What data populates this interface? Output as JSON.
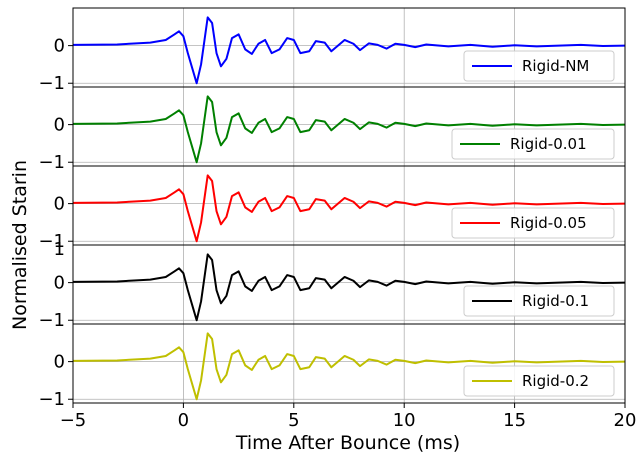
{
  "chart_data": {
    "type": "line",
    "xlabel": "Time After Bounce (ms)",
    "ylabel": "Normalised Starin",
    "xlim": [
      -5,
      20
    ],
    "xticks": [
      "−5",
      "0",
      "5",
      "10",
      "15",
      "20"
    ],
    "xtick_values": [
      -5,
      0,
      5,
      10,
      15,
      20
    ],
    "ylim": [
      -1,
      1
    ],
    "yticks": [
      "−1",
      "0"
    ],
    "ytick_values": [
      -1,
      0
    ],
    "top_ytick_label": "1",
    "grid": true,
    "legend_placement": "bottom-right (each panel)",
    "panels": [
      {
        "name": "Rigid-NM",
        "color": "#0000ff",
        "x": [
          -5,
          -3,
          -1.5,
          -0.8,
          -0.4,
          -0.2,
          0,
          0.2,
          0.45,
          0.6,
          0.8,
          1.1,
          1.3,
          1.5,
          1.7,
          1.95,
          2.2,
          2.5,
          2.8,
          3.1,
          3.4,
          3.7,
          4.0,
          4.35,
          4.7,
          5.0,
          5.3,
          5.7,
          6.0,
          6.4,
          6.7,
          7.0,
          7.3,
          7.7,
          8.0,
          8.4,
          8.8,
          9.2,
          9.6,
          10,
          10.5,
          11,
          12,
          13,
          14,
          15,
          16,
          17,
          18,
          19,
          20
        ],
        "y": [
          0.02,
          0.03,
          0.08,
          0.15,
          0.3,
          0.38,
          0.25,
          -0.2,
          -0.7,
          -1.0,
          -0.5,
          0.75,
          0.6,
          -0.2,
          -0.55,
          -0.35,
          0.2,
          0.3,
          -0.1,
          -0.22,
          0.05,
          0.15,
          -0.2,
          -0.1,
          0.2,
          0.15,
          -0.2,
          -0.15,
          0.12,
          0.08,
          -0.15,
          0.0,
          0.15,
          0.05,
          -0.12,
          0.06,
          0.02,
          -0.08,
          0.05,
          0.02,
          -0.04,
          0.03,
          -0.02,
          0.02,
          -0.03,
          0.01,
          -0.02,
          0.0,
          0.02,
          -0.01,
          0.0
        ]
      },
      {
        "name": "Rigid-0.01",
        "color": "#008000",
        "x": [
          -5,
          -3,
          -1.5,
          -0.8,
          -0.4,
          -0.2,
          0,
          0.2,
          0.45,
          0.6,
          0.8,
          1.1,
          1.3,
          1.5,
          1.7,
          1.95,
          2.2,
          2.5,
          2.8,
          3.1,
          3.4,
          3.7,
          4.0,
          4.35,
          4.7,
          5.0,
          5.3,
          5.7,
          6.0,
          6.4,
          6.7,
          7.0,
          7.3,
          7.7,
          8.0,
          8.4,
          8.8,
          9.2,
          9.6,
          10,
          10.5,
          11,
          12,
          13,
          14,
          15,
          16,
          17,
          18,
          19,
          20
        ],
        "y": [
          0.02,
          0.03,
          0.08,
          0.15,
          0.3,
          0.38,
          0.25,
          -0.2,
          -0.7,
          -1.0,
          -0.5,
          0.75,
          0.6,
          -0.2,
          -0.55,
          -0.35,
          0.2,
          0.3,
          -0.1,
          -0.22,
          0.05,
          0.15,
          -0.2,
          -0.1,
          0.2,
          0.15,
          -0.2,
          -0.15,
          0.12,
          0.08,
          -0.15,
          0.0,
          0.15,
          0.05,
          -0.12,
          0.06,
          0.02,
          -0.08,
          0.05,
          0.02,
          -0.04,
          0.03,
          -0.02,
          0.02,
          -0.03,
          0.01,
          -0.02,
          0.0,
          0.02,
          -0.01,
          0.0
        ]
      },
      {
        "name": "Rigid-0.05",
        "color": "#ff0000",
        "x": [
          -5,
          -3,
          -1.5,
          -0.8,
          -0.4,
          -0.2,
          0,
          0.2,
          0.45,
          0.6,
          0.8,
          1.1,
          1.3,
          1.5,
          1.7,
          1.95,
          2.2,
          2.5,
          2.8,
          3.1,
          3.4,
          3.7,
          4.0,
          4.35,
          4.7,
          5.0,
          5.3,
          5.7,
          6.0,
          6.4,
          6.7,
          7.0,
          7.3,
          7.7,
          8.0,
          8.4,
          8.8,
          9.2,
          9.6,
          10,
          10.5,
          11,
          12,
          13,
          14,
          15,
          16,
          17,
          18,
          19,
          20
        ],
        "y": [
          0.02,
          0.03,
          0.08,
          0.15,
          0.3,
          0.38,
          0.25,
          -0.2,
          -0.7,
          -1.0,
          -0.5,
          0.75,
          0.6,
          -0.2,
          -0.55,
          -0.35,
          0.2,
          0.3,
          -0.1,
          -0.22,
          0.05,
          0.15,
          -0.2,
          -0.1,
          0.2,
          0.15,
          -0.2,
          -0.15,
          0.12,
          0.08,
          -0.15,
          0.0,
          0.15,
          0.05,
          -0.12,
          0.06,
          0.02,
          -0.08,
          0.05,
          0.02,
          -0.04,
          0.03,
          -0.02,
          0.02,
          -0.03,
          0.01,
          -0.02,
          0.0,
          0.02,
          -0.01,
          0.0
        ]
      },
      {
        "name": "Rigid-0.1",
        "color": "#000000",
        "x": [
          -5,
          -3,
          -1.5,
          -0.8,
          -0.4,
          -0.2,
          0,
          0.2,
          0.45,
          0.6,
          0.8,
          1.1,
          1.3,
          1.5,
          1.7,
          1.95,
          2.2,
          2.5,
          2.8,
          3.1,
          3.4,
          3.7,
          4.0,
          4.35,
          4.7,
          5.0,
          5.3,
          5.7,
          6.0,
          6.4,
          6.7,
          7.0,
          7.3,
          7.7,
          8.0,
          8.4,
          8.8,
          9.2,
          9.6,
          10,
          10.5,
          11,
          12,
          13,
          14,
          15,
          16,
          17,
          18,
          19,
          20
        ],
        "y": [
          0.02,
          0.03,
          0.08,
          0.15,
          0.3,
          0.38,
          0.25,
          -0.2,
          -0.7,
          -1.0,
          -0.5,
          0.75,
          0.6,
          -0.2,
          -0.55,
          -0.35,
          0.2,
          0.3,
          -0.1,
          -0.22,
          0.05,
          0.15,
          -0.2,
          -0.1,
          0.2,
          0.15,
          -0.2,
          -0.15,
          0.12,
          0.08,
          -0.15,
          0.0,
          0.15,
          0.05,
          -0.12,
          0.06,
          0.02,
          -0.08,
          0.05,
          0.02,
          -0.04,
          0.03,
          -0.02,
          0.02,
          -0.03,
          0.01,
          -0.02,
          0.0,
          0.02,
          -0.01,
          0.0
        ]
      },
      {
        "name": "Rigid-0.2",
        "color": "#bfbf00",
        "x": [
          -5,
          -3,
          -1.5,
          -0.8,
          -0.4,
          -0.2,
          0,
          0.2,
          0.45,
          0.6,
          0.8,
          1.1,
          1.3,
          1.5,
          1.7,
          1.95,
          2.2,
          2.5,
          2.8,
          3.1,
          3.4,
          3.7,
          4.0,
          4.35,
          4.7,
          5.0,
          5.3,
          5.7,
          6.0,
          6.4,
          6.7,
          7.0,
          7.3,
          7.7,
          8.0,
          8.4,
          8.8,
          9.2,
          9.6,
          10,
          10.5,
          11,
          12,
          13,
          14,
          15,
          16,
          17,
          18,
          19,
          20
        ],
        "y": [
          0.02,
          0.03,
          0.08,
          0.15,
          0.3,
          0.38,
          0.25,
          -0.2,
          -0.7,
          -1.0,
          -0.5,
          0.75,
          0.6,
          -0.2,
          -0.55,
          -0.35,
          0.2,
          0.3,
          -0.1,
          -0.22,
          0.05,
          0.15,
          -0.2,
          -0.1,
          0.2,
          0.15,
          -0.2,
          -0.15,
          0.12,
          0.08,
          -0.15,
          0.0,
          0.15,
          0.05,
          -0.12,
          0.06,
          0.02,
          -0.08,
          0.05,
          0.02,
          -0.04,
          0.03,
          -0.02,
          0.02,
          -0.03,
          0.01,
          -0.02,
          0.0,
          0.02,
          -0.01,
          0.0
        ]
      }
    ]
  }
}
